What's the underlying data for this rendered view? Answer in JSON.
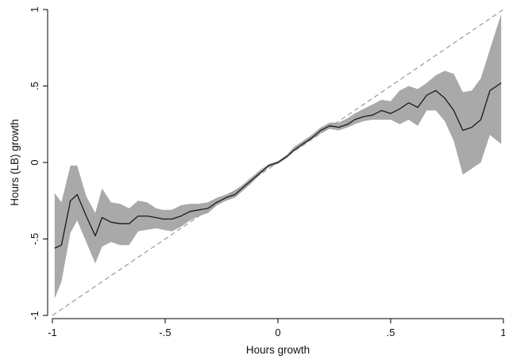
{
  "chart_data": {
    "type": "line",
    "title": "",
    "xlabel": "Hours growth",
    "ylabel": "Hours (LB) growth",
    "xlim": [
      -1,
      1
    ],
    "ylim": [
      -1,
      1
    ],
    "x_ticks": [
      {
        "value": -1,
        "label": "-1"
      },
      {
        "value": -0.5,
        "label": "-.5"
      },
      {
        "value": 0,
        "label": "0"
      },
      {
        "value": 0.5,
        "label": ".5"
      },
      {
        "value": 1,
        "label": "1"
      }
    ],
    "y_ticks": [
      {
        "value": -1,
        "label": "-1"
      },
      {
        "value": -0.5,
        "label": "-.5"
      },
      {
        "value": 0,
        "label": "0"
      },
      {
        "value": 0.5,
        "label": ".5"
      },
      {
        "value": 1,
        "label": "1"
      }
    ],
    "grid": false,
    "legend": "none",
    "reference_line": {
      "style": "dashed",
      "color": "#9a9a9a",
      "x": [
        -1,
        1
      ],
      "y": [
        -1,
        1
      ]
    },
    "colors": {
      "line": "#1a1a1a",
      "band": "#a9a9a9",
      "axis": "#000000"
    },
    "series": [
      {
        "style": "solid line with shaded confidence band",
        "x": [
          -0.99,
          -0.96,
          -0.92,
          -0.89,
          -0.85,
          -0.81,
          -0.78,
          -0.74,
          -0.7,
          -0.66,
          -0.62,
          -0.58,
          -0.54,
          -0.51,
          -0.47,
          -0.43,
          -0.39,
          -0.35,
          -0.31,
          -0.27,
          -0.23,
          -0.19,
          -0.16,
          -0.12,
          -0.08,
          -0.04,
          0.0,
          0.04,
          0.07,
          0.11,
          0.15,
          0.19,
          0.23,
          0.27,
          0.31,
          0.34,
          0.38,
          0.42,
          0.46,
          0.5,
          0.54,
          0.58,
          0.62,
          0.66,
          0.7,
          0.74,
          0.78,
          0.82,
          0.86,
          0.9,
          0.94,
          0.99
        ],
        "y": [
          -0.56,
          -0.54,
          -0.25,
          -0.21,
          -0.35,
          -0.48,
          -0.36,
          -0.39,
          -0.4,
          -0.4,
          -0.35,
          -0.35,
          -0.36,
          -0.37,
          -0.37,
          -0.35,
          -0.32,
          -0.31,
          -0.3,
          -0.26,
          -0.23,
          -0.21,
          -0.17,
          -0.12,
          -0.07,
          -0.02,
          0.0,
          0.04,
          0.08,
          0.12,
          0.16,
          0.21,
          0.24,
          0.23,
          0.25,
          0.28,
          0.3,
          0.31,
          0.34,
          0.32,
          0.35,
          0.39,
          0.36,
          0.44,
          0.47,
          0.42,
          0.34,
          0.21,
          0.23,
          0.28,
          0.47,
          0.52
        ],
        "lower": [
          -0.89,
          -0.78,
          -0.46,
          -0.38,
          -0.52,
          -0.66,
          -0.55,
          -0.52,
          -0.54,
          -0.54,
          -0.45,
          -0.44,
          -0.43,
          -0.44,
          -0.45,
          -0.42,
          -0.38,
          -0.35,
          -0.33,
          -0.28,
          -0.25,
          -0.23,
          -0.19,
          -0.14,
          -0.08,
          -0.03,
          -0.01,
          0.03,
          0.07,
          0.11,
          0.15,
          0.19,
          0.22,
          0.21,
          0.23,
          0.25,
          0.27,
          0.28,
          0.28,
          0.28,
          0.25,
          0.28,
          0.24,
          0.34,
          0.34,
          0.27,
          0.14,
          -0.08,
          -0.04,
          0.0,
          0.18,
          0.12
        ],
        "upper": [
          -0.2,
          -0.26,
          -0.02,
          -0.02,
          -0.22,
          -0.33,
          -0.17,
          -0.26,
          -0.27,
          -0.3,
          -0.25,
          -0.26,
          -0.3,
          -0.31,
          -0.31,
          -0.28,
          -0.27,
          -0.27,
          -0.26,
          -0.23,
          -0.21,
          -0.18,
          -0.15,
          -0.1,
          -0.05,
          -0.01,
          0.01,
          0.05,
          0.1,
          0.14,
          0.18,
          0.23,
          0.26,
          0.26,
          0.29,
          0.32,
          0.35,
          0.38,
          0.41,
          0.4,
          0.47,
          0.5,
          0.48,
          0.52,
          0.57,
          0.6,
          0.58,
          0.46,
          0.47,
          0.55,
          0.74,
          0.97
        ]
      }
    ]
  }
}
